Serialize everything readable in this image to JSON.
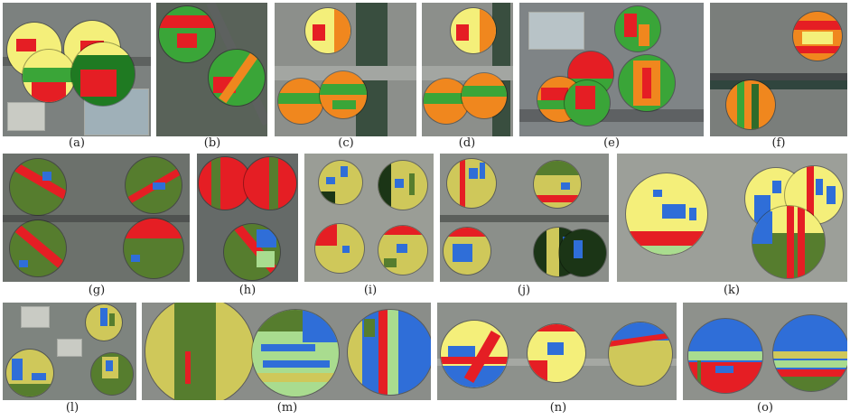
{
  "captions": [
    "(a)",
    "(b)",
    "(c)",
    "(d)",
    "(e)",
    "(f)",
    "(g)",
    "(h)",
    "(i)",
    "(j)",
    "(k)",
    "(l)",
    "(m)",
    "(n)",
    "(o)"
  ],
  "colors": {
    "red": "#e51e24",
    "yellow": "#f4ef7a",
    "khaki": "#cfc85a",
    "orange": "#f0871e",
    "green": "#3aa538",
    "darkgreen": "#2f6b2a",
    "olive": "#567d2e",
    "lightgreen": "#a9dc8f",
    "blue": "#2f6ed8",
    "verydark": "#1b3516"
  }
}
